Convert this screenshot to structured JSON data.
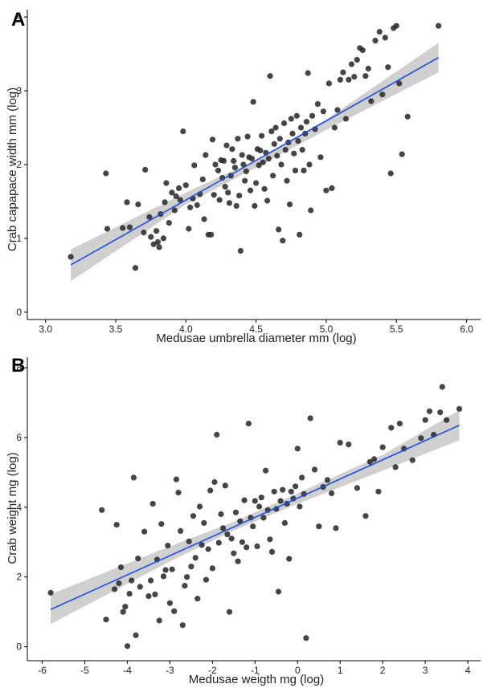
{
  "chart_data": [
    {
      "type": "scatter",
      "panel_label": "A",
      "xlabel": "Medusae umbrella diameter mm (log)",
      "ylabel": "Crab capapace width mm (log)",
      "xlim": [
        2.87,
        6.1
      ],
      "ylim": [
        -0.1,
        4.1
      ],
      "xticks": [
        3.0,
        3.5,
        4.0,
        4.5,
        5.0,
        5.5,
        6.0
      ],
      "xtick_labels": [
        "3.0",
        "3.5",
        "4.0",
        "4.5",
        "5.0",
        "5.5",
        "6.0"
      ],
      "yticks": [
        0,
        1,
        2,
        3,
        4
      ],
      "ytick_labels": [
        "0",
        "1",
        "2",
        "3",
        "4"
      ],
      "points_color": "#2b2b2b",
      "fit_color": "#1f4fe0",
      "band_color": "#d0d0d0",
      "fit": {
        "x": [
          3.18,
          5.8
        ],
        "y": [
          0.64,
          3.45
        ]
      },
      "band": {
        "x": [
          3.18,
          4.0,
          4.5,
          5.0,
          5.8
        ],
        "lower": [
          0.42,
          1.46,
          1.96,
          2.47,
          3.25
        ],
        "upper": [
          0.85,
          1.62,
          2.06,
          2.61,
          3.65
        ]
      },
      "points": [
        [
          3.18,
          0.75
        ],
        [
          3.43,
          1.88
        ],
        [
          3.44,
          1.13
        ],
        [
          3.55,
          1.14
        ],
        [
          3.58,
          1.49
        ],
        [
          3.6,
          1.15
        ],
        [
          3.64,
          0.6
        ],
        [
          3.66,
          1.46
        ],
        [
          3.7,
          1.08
        ],
        [
          3.71,
          1.93
        ],
        [
          3.74,
          1.29
        ],
        [
          3.75,
          1.02
        ],
        [
          3.77,
          0.92
        ],
        [
          3.79,
          1.1
        ],
        [
          3.8,
          0.95
        ],
        [
          3.81,
          0.88
        ],
        [
          3.82,
          1.33
        ],
        [
          3.84,
          1.0
        ],
        [
          3.85,
          1.49
        ],
        [
          3.86,
          1.75
        ],
        [
          3.88,
          1.21
        ],
        [
          3.9,
          1.62
        ],
        [
          3.92,
          1.38
        ],
        [
          3.93,
          1.57
        ],
        [
          3.95,
          1.68
        ],
        [
          3.96,
          1.52
        ],
        [
          3.98,
          2.45
        ],
        [
          4.0,
          1.72
        ],
        [
          4.02,
          1.13
        ],
        [
          4.03,
          1.42
        ],
        [
          4.05,
          1.54
        ],
        [
          4.06,
          1.99
        ],
        [
          4.08,
          1.45
        ],
        [
          4.1,
          1.6
        ],
        [
          4.12,
          1.8
        ],
        [
          4.13,
          1.26
        ],
        [
          4.14,
          2.13
        ],
        [
          4.16,
          1.05
        ],
        [
          4.18,
          1.05
        ],
        [
          4.19,
          2.34
        ],
        [
          4.2,
          1.59
        ],
        [
          4.21,
          2.0
        ],
        [
          4.23,
          1.92
        ],
        [
          4.24,
          1.52
        ],
        [
          4.25,
          2.06
        ],
        [
          4.26,
          1.82
        ],
        [
          4.27,
          2.05
        ],
        [
          4.28,
          1.7
        ],
        [
          4.29,
          2.26
        ],
        [
          4.3,
          1.62
        ],
        [
          4.31,
          1.48
        ],
        [
          4.32,
          1.85
        ],
        [
          4.33,
          2.21
        ],
        [
          4.34,
          2.05
        ],
        [
          4.35,
          1.96
        ],
        [
          4.36,
          1.44
        ],
        [
          4.37,
          2.35
        ],
        [
          4.38,
          1.58
        ],
        [
          4.39,
          0.83
        ],
        [
          4.4,
          2.13
        ],
        [
          4.41,
          2.0
        ],
        [
          4.42,
          1.78
        ],
        [
          4.43,
          1.91
        ],
        [
          4.44,
          2.38
        ],
        [
          4.45,
          2.1
        ],
        [
          4.46,
          1.65
        ],
        [
          4.47,
          2.08
        ],
        [
          4.48,
          2.85
        ],
        [
          4.49,
          1.44
        ],
        [
          4.5,
          1.75
        ],
        [
          4.51,
          2.21
        ],
        [
          4.52,
          1.99
        ],
        [
          4.53,
          2.19
        ],
        [
          4.54,
          2.39
        ],
        [
          4.55,
          2.03
        ],
        [
          4.56,
          1.67
        ],
        [
          4.57,
          2.16
        ],
        [
          4.58,
          1.51
        ],
        [
          4.59,
          2.08
        ],
        [
          4.6,
          3.2
        ],
        [
          4.61,
          2.45
        ],
        [
          4.62,
          1.85
        ],
        [
          4.63,
          2.28
        ],
        [
          4.64,
          2.5
        ],
        [
          4.65,
          2.12
        ],
        [
          4.66,
          1.12
        ],
        [
          4.67,
          2.35
        ],
        [
          4.68,
          2.0
        ],
        [
          4.69,
          0.97
        ],
        [
          4.7,
          2.56
        ],
        [
          4.71,
          2.2
        ],
        [
          4.72,
          1.78
        ],
        [
          4.73,
          2.3
        ],
        [
          4.74,
          1.46
        ],
        [
          4.75,
          2.62
        ],
        [
          4.76,
          2.42
        ],
        [
          4.77,
          2.15
        ],
        [
          4.78,
          1.92
        ],
        [
          4.79,
          2.66
        ],
        [
          4.8,
          2.32
        ],
        [
          4.81,
          1.05
        ],
        [
          4.82,
          2.5
        ],
        [
          4.83,
          2.2
        ],
        [
          4.84,
          1.92
        ],
        [
          4.85,
          2.42
        ],
        [
          4.86,
          2.58
        ],
        [
          4.87,
          3.24
        ],
        [
          4.88,
          2.0
        ],
        [
          4.89,
          1.38
        ],
        [
          4.9,
          2.66
        ],
        [
          4.92,
          2.48
        ],
        [
          4.94,
          2.82
        ],
        [
          4.96,
          2.1
        ],
        [
          4.98,
          2.72
        ],
        [
          5.0,
          1.65
        ],
        [
          5.02,
          3.1
        ],
        [
          5.04,
          1.68
        ],
        [
          5.06,
          2.5
        ],
        [
          5.08,
          2.74
        ],
        [
          5.1,
          3.15
        ],
        [
          5.12,
          3.25
        ],
        [
          5.14,
          2.62
        ],
        [
          5.16,
          3.15
        ],
        [
          5.18,
          3.36
        ],
        [
          5.2,
          3.19
        ],
        [
          5.22,
          3.42
        ],
        [
          5.24,
          3.58
        ],
        [
          5.26,
          3.55
        ],
        [
          5.28,
          3.2
        ],
        [
          5.3,
          3.3
        ],
        [
          5.32,
          2.86
        ],
        [
          5.35,
          3.68
        ],
        [
          5.38,
          3.8
        ],
        [
          5.4,
          2.95
        ],
        [
          5.42,
          3.72
        ],
        [
          5.44,
          3.32
        ],
        [
          5.46,
          1.88
        ],
        [
          5.48,
          3.85
        ],
        [
          5.5,
          3.88
        ],
        [
          5.52,
          3.1
        ],
        [
          5.54,
          2.14
        ],
        [
          5.58,
          2.65
        ],
        [
          5.8,
          3.88
        ]
      ]
    },
    {
      "type": "scatter",
      "panel_label": "B",
      "xlabel": "Medusae weigth mg (log)",
      "ylabel": "Crab weight mg (log)",
      "xlim": [
        -6.35,
        4.3
      ],
      "ylim": [
        -0.4,
        8.3
      ],
      "xticks": [
        -6,
        -5,
        -4,
        -3,
        -2,
        -1,
        0,
        1,
        2,
        3,
        4
      ],
      "xtick_labels": [
        "-6",
        "-5",
        "-4",
        "-3",
        "-2",
        "-1",
        "0",
        "1",
        "2",
        "3",
        "4"
      ],
      "yticks": [
        0,
        2,
        4,
        6,
        8
      ],
      "ytick_labels": [
        "0",
        "2",
        "4",
        "6",
        "8"
      ],
      "points_color": "#2b2b2b",
      "fit_color": "#1f4fe0",
      "band_color": "#d0d0d0",
      "fit": {
        "x": [
          -5.8,
          3.8
        ],
        "y": [
          1.07,
          6.35
        ]
      },
      "band": {
        "x": [
          -5.8,
          -3.0,
          -1.5,
          0.0,
          2.0,
          3.8
        ],
        "lower": [
          0.65,
          2.45,
          3.33,
          4.1,
          5.05,
          5.92
        ],
        "upper": [
          1.5,
          2.88,
          3.58,
          4.4,
          5.5,
          6.78
        ]
      },
      "points": [
        [
          -5.8,
          1.55
        ],
        [
          -4.6,
          3.92
        ],
        [
          -4.5,
          0.78
        ],
        [
          -4.3,
          1.65
        ],
        [
          -4.25,
          3.5
        ],
        [
          -4.2,
          1.82
        ],
        [
          -4.15,
          2.28
        ],
        [
          -4.1,
          1.0
        ],
        [
          -4.05,
          1.15
        ],
        [
          -4.0,
          0.02
        ],
        [
          -3.95,
          1.52
        ],
        [
          -3.9,
          1.9
        ],
        [
          -3.85,
          4.85
        ],
        [
          -3.8,
          0.33
        ],
        [
          -3.75,
          2.53
        ],
        [
          -3.7,
          1.72
        ],
        [
          -3.6,
          3.3
        ],
        [
          -3.5,
          1.45
        ],
        [
          -3.45,
          1.9
        ],
        [
          -3.4,
          4.1
        ],
        [
          -3.35,
          1.5
        ],
        [
          -3.3,
          2.5
        ],
        [
          -3.25,
          0.75
        ],
        [
          -3.2,
          3.52
        ],
        [
          -3.15,
          2.02
        ],
        [
          -3.1,
          2.2
        ],
        [
          -3.05,
          2.9
        ],
        [
          -3.0,
          1.25
        ],
        [
          -2.95,
          2.22
        ],
        [
          -2.9,
          1.02
        ],
        [
          -2.85,
          4.8
        ],
        [
          -2.8,
          4.42
        ],
        [
          -2.75,
          3.32
        ],
        [
          -2.7,
          0.62
        ],
        [
          -2.65,
          1.75
        ],
        [
          -2.6,
          2.0
        ],
        [
          -2.55,
          3.02
        ],
        [
          -2.5,
          2.3
        ],
        [
          -2.45,
          3.75
        ],
        [
          -2.4,
          2.55
        ],
        [
          -2.35,
          1.38
        ],
        [
          -2.3,
          4.02
        ],
        [
          -2.25,
          2.92
        ],
        [
          -2.2,
          3.55
        ],
        [
          -2.15,
          1.92
        ],
        [
          -2.1,
          2.8
        ],
        [
          -2.05,
          4.48
        ],
        [
          -2.0,
          2.25
        ],
        [
          -1.95,
          4.72
        ],
        [
          -1.9,
          6.08
        ],
        [
          -1.85,
          2.98
        ],
        [
          -1.8,
          3.8
        ],
        [
          -1.75,
          3.4
        ],
        [
          -1.7,
          4.62
        ],
        [
          -1.65,
          3.22
        ],
        [
          -1.6,
          1.0
        ],
        [
          -1.55,
          3.1
        ],
        [
          -1.5,
          2.68
        ],
        [
          -1.45,
          3.85
        ],
        [
          -1.4,
          2.45
        ],
        [
          -1.35,
          3.6
        ],
        [
          -1.3,
          3.0
        ],
        [
          -1.25,
          4.2
        ],
        [
          -1.2,
          2.85
        ],
        [
          -1.15,
          6.4
        ],
        [
          -1.1,
          3.7
        ],
        [
          -1.05,
          3.45
        ],
        [
          -1.0,
          4.18
        ],
        [
          -0.95,
          2.88
        ],
        [
          -0.9,
          4.02
        ],
        [
          -0.85,
          4.28
        ],
        [
          -0.8,
          3.7
        ],
        [
          -0.75,
          5.05
        ],
        [
          -0.7,
          3.92
        ],
        [
          -0.65,
          3.08
        ],
        [
          -0.6,
          2.72
        ],
        [
          -0.55,
          4.45
        ],
        [
          -0.5,
          3.95
        ],
        [
          -0.45,
          1.58
        ],
        [
          -0.4,
          4.18
        ],
        [
          -0.35,
          4.5
        ],
        [
          -0.3,
          3.55
        ],
        [
          -0.25,
          4.1
        ],
        [
          -0.2,
          2.52
        ],
        [
          -0.15,
          4.45
        ],
        [
          -0.1,
          4.25
        ],
        [
          -0.05,
          4.6
        ],
        [
          0.0,
          5.68
        ],
        [
          0.05,
          4.02
        ],
        [
          0.1,
          4.85
        ],
        [
          0.15,
          4.38
        ],
        [
          0.2,
          0.25
        ],
        [
          0.3,
          6.55
        ],
        [
          0.4,
          5.08
        ],
        [
          0.5,
          3.45
        ],
        [
          0.6,
          4.58
        ],
        [
          0.7,
          4.78
        ],
        [
          0.8,
          4.4
        ],
        [
          0.9,
          3.4
        ],
        [
          1.0,
          5.85
        ],
        [
          1.2,
          5.8
        ],
        [
          1.4,
          4.55
        ],
        [
          1.6,
          3.75
        ],
        [
          1.7,
          5.3
        ],
        [
          1.8,
          5.38
        ],
        [
          1.9,
          4.45
        ],
        [
          2.0,
          5.72
        ],
        [
          2.2,
          6.28
        ],
        [
          2.3,
          5.15
        ],
        [
          2.4,
          6.4
        ],
        [
          2.5,
          5.68
        ],
        [
          2.7,
          5.35
        ],
        [
          2.9,
          5.98
        ],
        [
          3.0,
          6.5
        ],
        [
          3.1,
          6.75
        ],
        [
          3.2,
          6.08
        ],
        [
          3.35,
          6.72
        ],
        [
          3.4,
          7.45
        ],
        [
          3.5,
          6.5
        ],
        [
          3.8,
          6.82
        ]
      ]
    }
  ]
}
